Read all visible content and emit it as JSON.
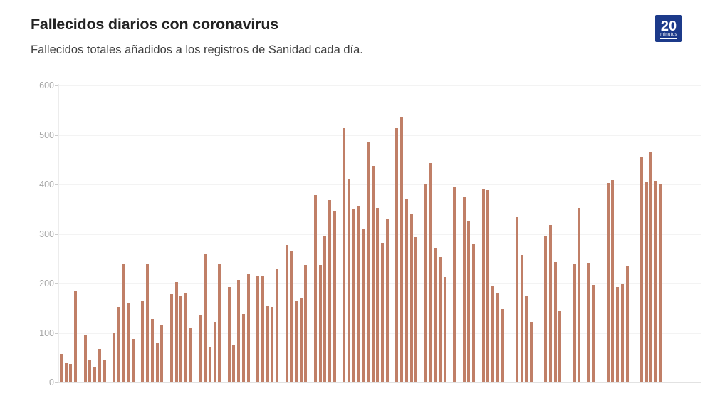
{
  "header": {
    "title": "Fallecidos diarios con coronavirus",
    "subtitle": "Fallecidos totales añadidos a los registros de Sanidad cada día.",
    "logo": {
      "big_text": "20",
      "small_text": "minutos"
    }
  },
  "colors": {
    "bar": "#c07f67",
    "logo_background": "#1c3a8a",
    "title_text": "#222222",
    "subtitle_text": "#404040",
    "axis_label": "#a6a6a6",
    "gridline": "#f3f3f3",
    "baseline": "#e2e2e2",
    "tick": "#cccccc",
    "background": "#ffffff"
  },
  "chart_data": {
    "type": "bar",
    "title": "Fallecidos diarios con coronavirus",
    "subtitle": "Fallecidos totales añadidos a los registros de Sanidad cada día.",
    "xlabel": "",
    "ylabel": "",
    "ylim": [
      0,
      600
    ],
    "yticks": [
      0,
      100,
      200,
      300,
      400,
      500,
      600
    ],
    "grid": true,
    "legend": "none",
    "x_axis_labels_visible": false,
    "note": "null entries are days with no reported bar (gaps in the series)",
    "values": [
      57,
      40,
      38,
      185,
      null,
      97,
      45,
      32,
      67,
      45,
      null,
      100,
      153,
      239,
      160,
      88,
      null,
      166,
      241,
      128,
      80,
      115,
      null,
      178,
      203,
      175,
      181,
      110,
      null,
      137,
      261,
      72,
      122,
      241,
      null,
      193,
      75,
      207,
      138,
      219,
      null,
      215,
      216,
      154,
      152,
      230,
      null,
      278,
      266,
      166,
      171,
      238,
      null,
      379,
      238,
      297,
      368,
      347,
      null,
      513,
      412,
      351,
      357,
      309,
      486,
      437,
      352,
      282,
      329,
      null,
      513,
      537,
      370,
      339,
      294,
      null,
      402,
      443,
      272,
      253,
      213,
      null,
      396,
      null,
      376,
      326,
      280,
      null,
      390,
      389,
      194,
      180,
      148,
      null,
      null,
      334,
      258,
      175,
      123,
      null,
      null,
      297,
      318,
      243,
      144,
      null,
      null,
      240,
      352,
      null,
      242,
      197,
      null,
      null,
      403,
      409,
      193,
      199,
      234,
      null,
      null,
      455,
      406,
      465,
      407,
      402
    ]
  },
  "layout_numbers": {
    "baseline_y": 537,
    "plot_top_y": 120,
    "axis_x": 82,
    "plot_right_x": 985,
    "bars_left_x": 84,
    "bars_width": 846
  }
}
